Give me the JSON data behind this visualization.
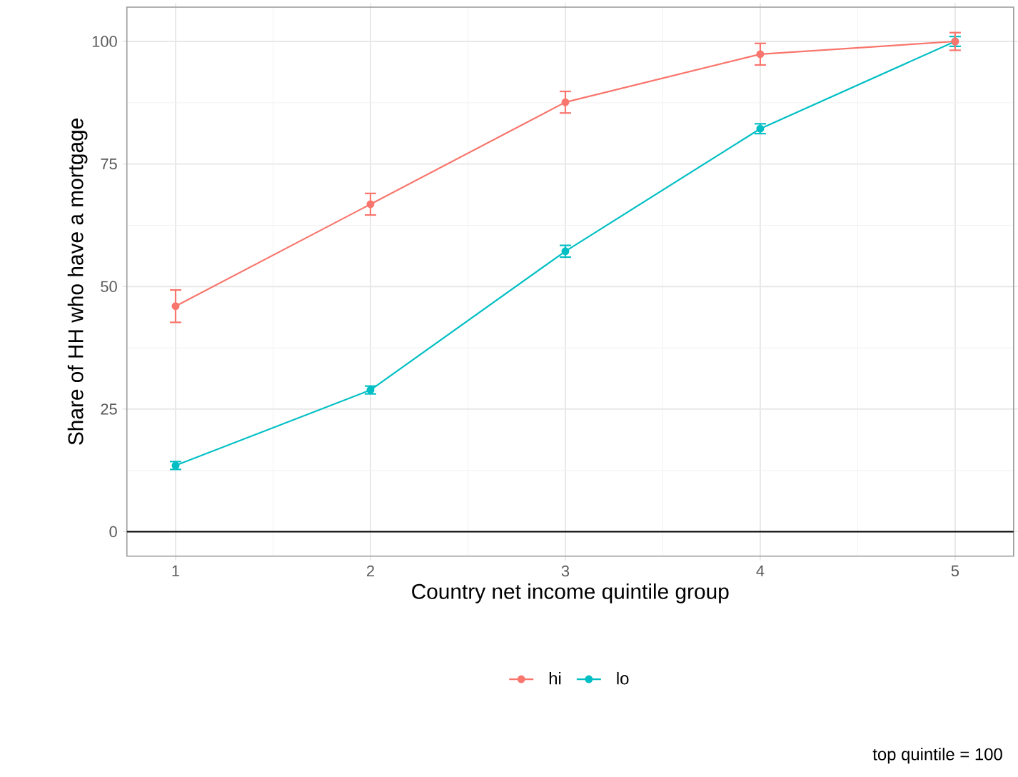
{
  "chart_data": {
    "type": "line",
    "xlabel": "Country net income quintile group",
    "ylabel": "Share of HH who have a mortgage",
    "x": [
      1,
      2,
      3,
      4,
      5
    ],
    "xlim": [
      0.75,
      5.3
    ],
    "xticks": [
      1,
      2,
      3,
      4,
      5
    ],
    "ylim": [
      -5,
      107
    ],
    "yticks": [
      0,
      25,
      50,
      75,
      100
    ],
    "series": [
      {
        "name": "hi",
        "color": "#f8766d",
        "values": [
          46,
          66.8,
          87.6,
          97.4,
          100
        ],
        "errors": [
          3.3,
          2.2,
          2.2,
          2.2,
          1.8
        ]
      },
      {
        "name": "lo",
        "color": "#00bfc4",
        "values": [
          13.5,
          28.9,
          57.2,
          82.2,
          100
        ],
        "errors": [
          0.8,
          0.8,
          1.2,
          1.0,
          1.0
        ]
      }
    ],
    "ref_lines": [
      {
        "axis": "y",
        "value": 0,
        "color": "#000000"
      }
    ],
    "grid": true,
    "legend": "bottom",
    "marker": "circle",
    "line_style": "solid",
    "annotations": [
      "top quintile = 100"
    ]
  }
}
